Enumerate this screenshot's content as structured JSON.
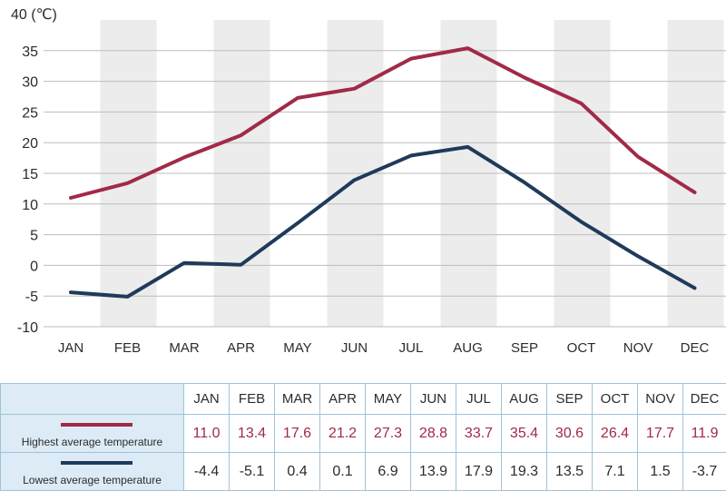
{
  "chart_data": {
    "type": "line",
    "ylabel": "40 (℃)",
    "ylim": [
      -10,
      40
    ],
    "yticks": [
      "40 (℃)",
      "35",
      "30",
      "25",
      "20",
      "15",
      "10",
      "5",
      "0",
      "-5",
      "-10"
    ],
    "categories": [
      "JAN",
      "FEB",
      "MAR",
      "APR",
      "MAY",
      "JUN",
      "JUL",
      "AUG",
      "SEP",
      "OCT",
      "NOV",
      "DEC"
    ],
    "series": [
      {
        "name": "Highest average temperature",
        "color": "#a12a48",
        "values": [
          11.0,
          13.4,
          17.6,
          21.2,
          27.3,
          28.8,
          33.7,
          35.4,
          30.6,
          26.4,
          17.7,
          11.9
        ]
      },
      {
        "name": "Lowest average temperature",
        "color": "#1f3a5a",
        "values": [
          -4.4,
          -5.1,
          0.4,
          0.1,
          6.9,
          13.9,
          17.9,
          19.3,
          13.5,
          7.1,
          1.5,
          -3.7
        ]
      }
    ],
    "grid": true,
    "alternating_column_shading": true
  },
  "table": {
    "months": [
      "JAN",
      "FEB",
      "MAR",
      "APR",
      "MAY",
      "JUN",
      "JUL",
      "AUG",
      "SEP",
      "OCT",
      "NOV",
      "DEC"
    ],
    "rows": [
      {
        "label": "Highest average temperature",
        "color": "#a12a48",
        "values": [
          "11.0",
          "13.4",
          "17.6",
          "21.2",
          "27.3",
          "28.8",
          "33.7",
          "35.4",
          "30.6",
          "26.4",
          "17.7",
          "11.9"
        ]
      },
      {
        "label": "Lowest average temperature",
        "color": "#1f3a5a",
        "values": [
          "-4.4",
          "-5.1",
          "0.4",
          "0.1",
          "6.9",
          "13.9",
          "17.9",
          "19.3",
          "13.5",
          "7.1",
          "1.5",
          "-3.7"
        ]
      }
    ]
  }
}
